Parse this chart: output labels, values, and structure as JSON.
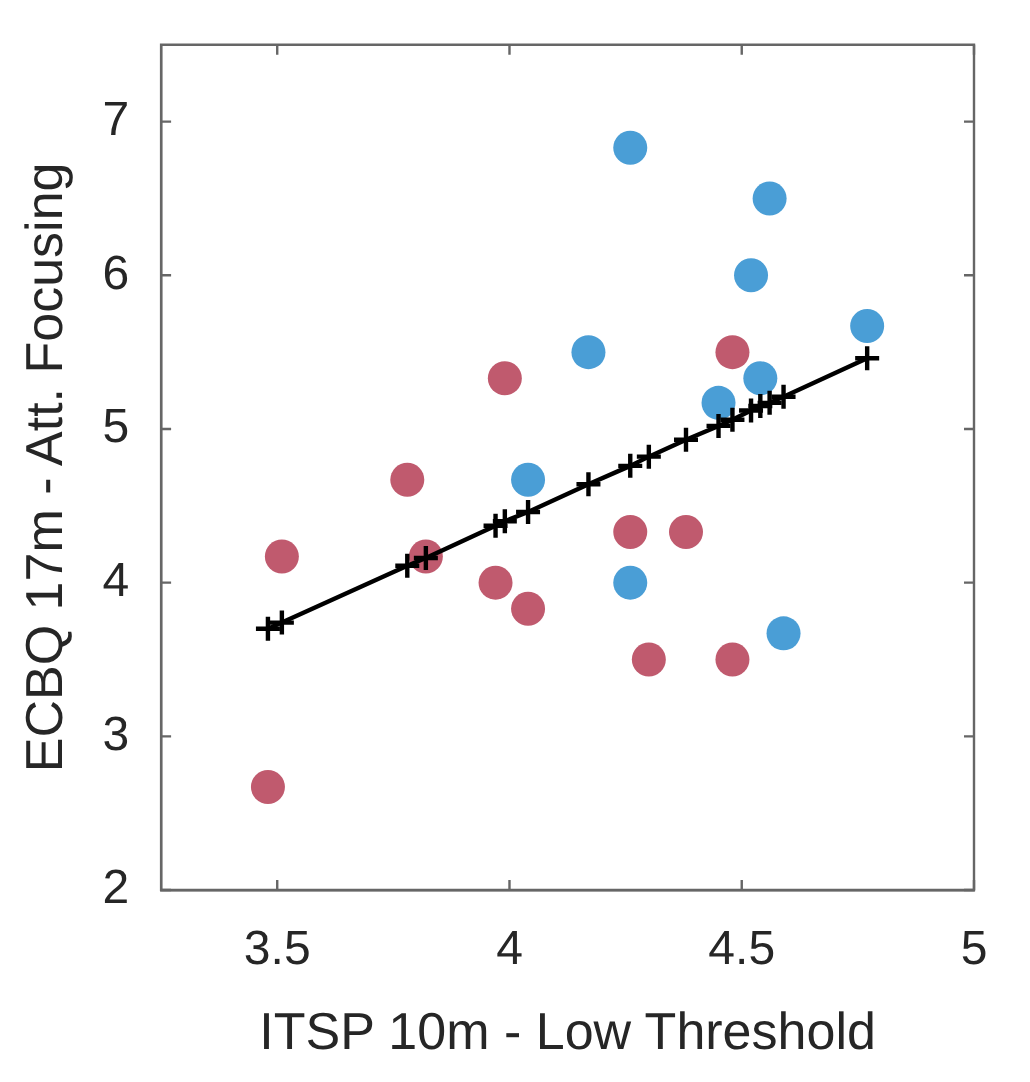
{
  "chart_data": {
    "type": "scatter",
    "xlabel": "ITSP 10m - Low Threshold",
    "ylabel": "ECBQ 17m - Att. Focusing",
    "xlim": [
      3.25,
      5
    ],
    "xticks": [
      3.5,
      4,
      4.5,
      5
    ],
    "ylim": [
      2,
      7.5
    ],
    "yticks": [
      2,
      3,
      4,
      5,
      6,
      7
    ],
    "grid": false,
    "legend": false,
    "marker": "circle",
    "series": [
      {
        "color": "#4a9ed6",
        "x": [
          4.26,
          4.56,
          4.52,
          4.77,
          4.17,
          4.54,
          4.45,
          4.04,
          4.26,
          4.59
        ],
        "values": [
          6.83,
          6.5,
          6.0,
          5.67,
          5.5,
          5.33,
          5.17,
          4.67,
          4.0,
          3.67
        ]
      },
      {
        "color": "#c05a6e",
        "x": [
          3.99,
          4.48,
          3.78,
          3.51,
          3.82,
          4.26,
          4.38,
          3.97,
          4.04,
          4.3,
          4.48,
          3.48
        ],
        "values": [
          5.33,
          5.5,
          4.67,
          4.17,
          4.17,
          4.33,
          4.33,
          4.0,
          3.83,
          3.5,
          3.5,
          2.67
        ]
      },
      {
        "type": "line",
        "color": "#000000",
        "marker": "cross",
        "line_style": "solid",
        "x": [
          3.48,
          3.51,
          3.78,
          3.82,
          3.97,
          3.99,
          4.04,
          4.17,
          4.26,
          4.3,
          4.38,
          4.45,
          4.48,
          4.52,
          4.54,
          4.56,
          4.59,
          4.77
        ],
        "values": [
          3.7,
          3.74,
          4.11,
          4.16,
          4.37,
          4.4,
          4.46,
          4.64,
          4.76,
          4.82,
          4.93,
          5.02,
          5.06,
          5.12,
          5.15,
          5.17,
          5.21,
          5.46
        ]
      }
    ]
  }
}
